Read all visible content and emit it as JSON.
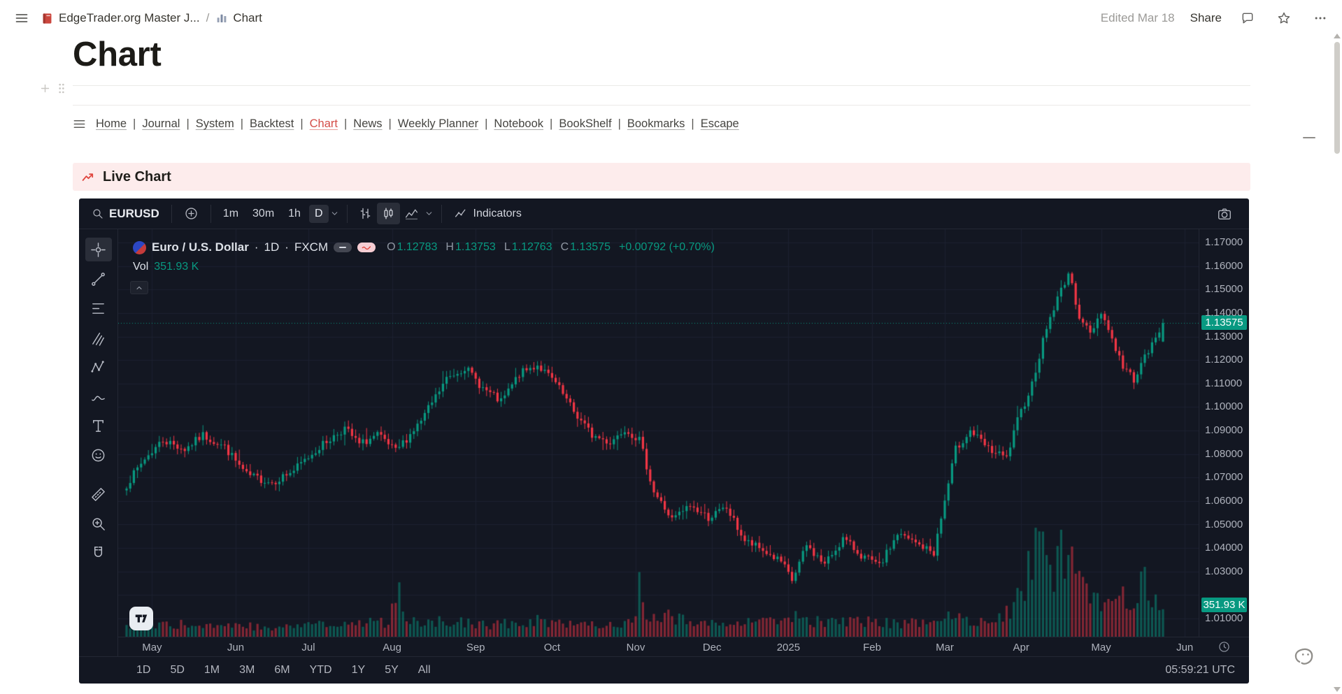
{
  "colors": {
    "up": "#089981",
    "down": "#f23645",
    "accent_red": "#d44c47",
    "banner_bg": "#fdecec"
  },
  "topbar": {
    "workspace_name": "EdgeTrader.org Master J...",
    "breadcrumb_separator": "/",
    "page_name": "Chart",
    "edited_label": "Edited Mar 18",
    "share_label": "Share"
  },
  "page": {
    "title": "Chart"
  },
  "nav": {
    "separator": "|",
    "items": [
      {
        "label": "Home"
      },
      {
        "label": "Journal"
      },
      {
        "label": "System"
      },
      {
        "label": "Backtest"
      },
      {
        "label": "Chart",
        "active": true
      },
      {
        "label": "News"
      },
      {
        "label": "Weekly Planner"
      },
      {
        "label": "Notebook"
      },
      {
        "label": "BookShelf"
      },
      {
        "label": "Bookmarks"
      },
      {
        "label": "Escape"
      }
    ]
  },
  "banner": {
    "title": "Live Chart"
  },
  "widget": {
    "symbol_search": "EURUSD",
    "intervals": [
      {
        "label": "1m"
      },
      {
        "label": "30m"
      },
      {
        "label": "1h"
      },
      {
        "label": "D",
        "active": true
      }
    ],
    "indicators_label": "Indicators",
    "legend": {
      "symbol_title": "Euro / U.S. Dollar",
      "separator": "·",
      "interval": "1D",
      "exchange": "FXCM",
      "o_label": "O",
      "o_value": "1.12783",
      "h_label": "H",
      "h_value": "1.13753",
      "l_label": "L",
      "l_value": "1.12763",
      "c_label": "C",
      "c_value": "1.13575",
      "change": "+0.00792 (+0.70%)",
      "vol_label": "Vol",
      "vol_value": "351.93 K"
    },
    "price_badge": "1.13575",
    "volume_badge": "351.93 K",
    "ranges": [
      {
        "label": "1D"
      },
      {
        "label": "5D"
      },
      {
        "label": "1M"
      },
      {
        "label": "3M"
      },
      {
        "label": "6M"
      },
      {
        "label": "YTD"
      },
      {
        "label": "1Y"
      },
      {
        "label": "5Y"
      },
      {
        "label": "All"
      }
    ],
    "clock": "05:59:21 UTC"
  },
  "chart_data": {
    "type": "candlestick",
    "symbol": "EURUSD",
    "exchange": "FXCM",
    "interval": "1D",
    "title": "Euro / U.S. Dollar · 1D · FXCM",
    "last_candle": {
      "open": 1.12783,
      "high": 1.13753,
      "low": 1.12763,
      "close": 1.13575
    },
    "last_price": 1.13575,
    "change": "+0.00792 (+0.70%)",
    "volume_display": "351.93 K",
    "price_range": [
      1.01,
      1.17
    ],
    "up_color": "#089981",
    "down_color": "#f23645",
    "y_axis_ticks": [
      "1.17000",
      "1.16000",
      "1.15000",
      "1.14000",
      "1.13000",
      "1.12000",
      "1.11000",
      "1.10000",
      "1.09000",
      "1.08000",
      "1.07000",
      "1.06000",
      "1.05000",
      "1.04000",
      "1.03000",
      "1.01000"
    ],
    "x_axis_ticks": [
      {
        "label": "May",
        "i": 7
      },
      {
        "label": "Jun",
        "i": 30
      },
      {
        "label": "Jul",
        "i": 50
      },
      {
        "label": "Aug",
        "i": 73
      },
      {
        "label": "Sep",
        "i": 96
      },
      {
        "label": "Oct",
        "i": 117
      },
      {
        "label": "Nov",
        "i": 140
      },
      {
        "label": "Dec",
        "i": 161
      },
      {
        "label": "2025",
        "i": 182
      },
      {
        "label": "Feb",
        "i": 205
      },
      {
        "label": "Mar",
        "i": 225
      },
      {
        "label": "Apr",
        "i": 246
      },
      {
        "label": "May",
        "i": 268
      },
      {
        "label": "Jun",
        "i": 291
      }
    ],
    "candle_count": 286,
    "close_anchors": [
      [
        0,
        1.067
      ],
      [
        5,
        1.078
      ],
      [
        10,
        1.086
      ],
      [
        16,
        1.082
      ],
      [
        21,
        1.088
      ],
      [
        27,
        1.083
      ],
      [
        33,
        1.071
      ],
      [
        40,
        1.068
      ],
      [
        46,
        1.073
      ],
      [
        53,
        1.083
      ],
      [
        60,
        1.091
      ],
      [
        64,
        1.084
      ],
      [
        69,
        1.088
      ],
      [
        74,
        1.081
      ],
      [
        81,
        1.094
      ],
      [
        88,
        1.112
      ],
      [
        93,
        1.117
      ],
      [
        98,
        1.108
      ],
      [
        103,
        1.102
      ],
      [
        108,
        1.114
      ],
      [
        113,
        1.118
      ],
      [
        118,
        1.11
      ],
      [
        123,
        1.098
      ],
      [
        128,
        1.088
      ],
      [
        133,
        1.085
      ],
      [
        137,
        1.091
      ],
      [
        141,
        1.086
      ],
      [
        145,
        1.064
      ],
      [
        150,
        1.052
      ],
      [
        155,
        1.058
      ],
      [
        160,
        1.053
      ],
      [
        165,
        1.057
      ],
      [
        170,
        1.043
      ],
      [
        175,
        1.039
      ],
      [
        180,
        1.034
      ],
      [
        183,
        1.026
      ],
      [
        187,
        1.041
      ],
      [
        192,
        1.033
      ],
      [
        197,
        1.044
      ],
      [
        202,
        1.037
      ],
      [
        207,
        1.032
      ],
      [
        212,
        1.046
      ],
      [
        217,
        1.042
      ],
      [
        222,
        1.038
      ],
      [
        225,
        1.06
      ],
      [
        228,
        1.082
      ],
      [
        232,
        1.09
      ],
      [
        237,
        1.082
      ],
      [
        242,
        1.078
      ],
      [
        245,
        1.094
      ],
      [
        249,
        1.11
      ],
      [
        253,
        1.134
      ],
      [
        257,
        1.15
      ],
      [
        259,
        1.157
      ],
      [
        262,
        1.139
      ],
      [
        265,
        1.131
      ],
      [
        268,
        1.141
      ],
      [
        271,
        1.129
      ],
      [
        274,
        1.117
      ],
      [
        277,
        1.112
      ],
      [
        280,
        1.121
      ],
      [
        283,
        1.129
      ],
      [
        285,
        1.1357
      ]
    ],
    "volume_anchors": [
      [
        0,
        0.1
      ],
      [
        20,
        0.12
      ],
      [
        40,
        0.09
      ],
      [
        60,
        0.12
      ],
      [
        72,
        0.14
      ],
      [
        75,
        0.4
      ],
      [
        78,
        0.13
      ],
      [
        88,
        0.16
      ],
      [
        100,
        0.11
      ],
      [
        113,
        0.15
      ],
      [
        125,
        0.13
      ],
      [
        135,
        0.12
      ],
      [
        140,
        0.18
      ],
      [
        141,
        0.52
      ],
      [
        142,
        0.25
      ],
      [
        145,
        0.22
      ],
      [
        150,
        0.2
      ],
      [
        155,
        0.13
      ],
      [
        160,
        0.15
      ],
      [
        165,
        0.14
      ],
      [
        170,
        0.18
      ],
      [
        175,
        0.15
      ],
      [
        180,
        0.16
      ],
      [
        183,
        0.22
      ],
      [
        187,
        0.15
      ],
      [
        195,
        0.13
      ],
      [
        205,
        0.14
      ],
      [
        215,
        0.13
      ],
      [
        222,
        0.12
      ],
      [
        228,
        0.2
      ],
      [
        235,
        0.15
      ],
      [
        242,
        0.22
      ],
      [
        245,
        0.35
      ],
      [
        247,
        0.55
      ],
      [
        249,
        0.75
      ],
      [
        250,
        0.95
      ],
      [
        251,
        0.85
      ],
      [
        253,
        0.7
      ],
      [
        255,
        0.55
      ],
      [
        257,
        0.85
      ],
      [
        259,
        0.6
      ],
      [
        261,
        0.7
      ],
      [
        263,
        0.5
      ],
      [
        265,
        0.45
      ],
      [
        268,
        0.4
      ],
      [
        271,
        0.35
      ],
      [
        274,
        0.45
      ],
      [
        277,
        0.4
      ],
      [
        280,
        0.5
      ],
      [
        283,
        0.3
      ],
      [
        285,
        0.28
      ]
    ]
  }
}
